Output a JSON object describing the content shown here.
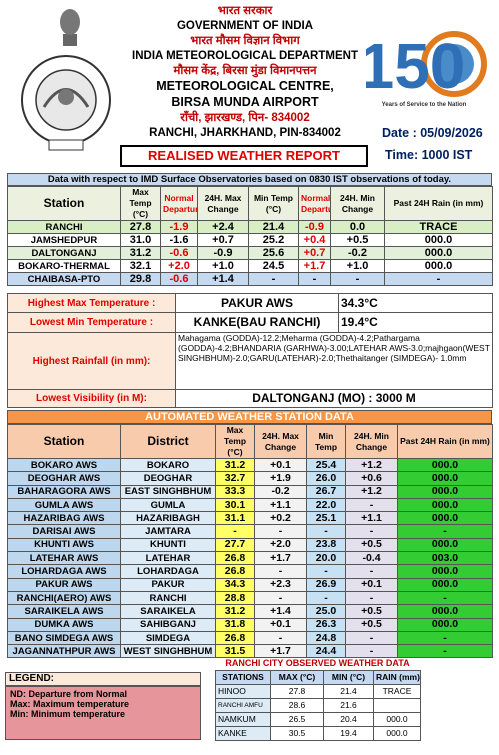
{
  "header": {
    "hindi_govt": "भारत सरकार",
    "govt": "GOVERNMENT OF INDIA",
    "hindi_dept": "भारत मौसम विज्ञान विभाग",
    "dept": "INDIA METEOROLOGICAL DEPARTMENT",
    "hindi_centre": "मौसम केंद्र, बिरसा मुंडा विमानपत्तन",
    "centre": "METEOROLOGICAL CENTRE,",
    "airport": "BIRSA MUNDA AIRPORT",
    "hindi_address": "रॉंची, झारखण्ड, पिन- 834002",
    "address": "RANCHI, JHARKHAND, PIN-834002",
    "date": "Date : 05/09/2026",
    "time": "Time: 1000 IST",
    "title": "REALISED WEATHER REPORT",
    "logo_number": "150",
    "logo_caption": "Years of Service to the Nation"
  },
  "observatory_table": {
    "note": "Data with respect to IMD Surface Observatories based on 0830 IST observations of today.",
    "headers": [
      "Station",
      "Max Temp (°C)",
      "Normal Departure",
      "24H. Max Change",
      "Min Temp (°C)",
      "Normal Departure",
      "24H. Min Change",
      "Past 24H Rain (in mm)"
    ],
    "rows": [
      [
        "RANCHI",
        "27.8",
        "-1.9",
        "+2.4",
        "21.4",
        "-0.9",
        "0.0",
        "TRACE"
      ],
      [
        "JAMSHEDPUR",
        "31.0",
        "-1.6",
        "+0.7",
        "25.2",
        "+0.4",
        "+0.5",
        "000.0"
      ],
      [
        "DALTONGANJ",
        "31.2",
        "-0.6",
        "-0.9",
        "25.6",
        "+0.7",
        "-0.2",
        "000.0"
      ],
      [
        "BOKARO-THERMAL",
        "32.1",
        "+2.0",
        "+1.0",
        "24.5",
        "+1.7",
        "+1.0",
        "000.0"
      ],
      [
        "CHAIBASA-PTO",
        "29.8",
        "-0.6",
        "+1.4",
        "-",
        "-",
        "-",
        "-"
      ]
    ]
  },
  "extremes": [
    {
      "label": "Highest Max Temperature :",
      "place": "PAKUR AWS",
      "value": "34.3°C"
    },
    {
      "label": "Lowest Min Temperature :",
      "place": "KANKE(BAU RANCHI)",
      "value": "19.4°C"
    },
    {
      "label": "Highest Rainfall (in mm):",
      "place": "Mahagama (GODDA)-12.2;Meharma (GODDA)-4.2;Pathargama (GODDA)-4.2;BHANDARIA (GARHWA)-3.00;LATEHAR AWS-3.0;majhgaon(WEST SINGHBHUM)-2.0;GARU(LATEHAR)-2.0;Thethaitanger (SIMDEGA)- 1.0mm"
    },
    {
      "label": "Lowest Visibility (in M):",
      "place": "DALTONGANJ (MO) : 3000 M"
    }
  ],
  "aws_table": {
    "title": "AUTOMATED WEATHER STATION DATA",
    "headers": [
      "Station",
      "District",
      "Max Temp (°C)",
      "24H. Max Change",
      "Min Temp",
      "24H. Min Change",
      "Past 24H Rain (in mm)"
    ],
    "rows": [
      [
        "BOKARO AWS",
        "BOKARO",
        "31.2",
        "+0.1",
        "25.4",
        "+1.2",
        "000.0"
      ],
      [
        "DEOGHAR AWS",
        "DEOGHAR",
        "32.7",
        "+1.9",
        "26.0",
        "+0.6",
        "000.0"
      ],
      [
        "BAHARAGORA AWS",
        "EAST SINGHBHUM",
        "33.3",
        "-0.2",
        "26.7",
        "+1.2",
        "000.0"
      ],
      [
        "GUMLA AWS",
        "GUMLA",
        "30.1",
        "+1.1",
        "22.0",
        "-",
        "000.0"
      ],
      [
        "HAZARIBAG AWS",
        "HAZARIBAGH",
        "31.1",
        "+0.2",
        "25.1",
        "+1.1",
        "000.0"
      ],
      [
        "DARISAI AWS",
        "JAMTARA",
        "-",
        "-",
        "-",
        "-",
        "-"
      ],
      [
        "KHUNTI AWS",
        "KHUNTI",
        "27.7",
        "+2.0",
        "23.8",
        "+0.5",
        "000.0"
      ],
      [
        "LATEHAR AWS",
        "LATEHAR",
        "26.8",
        "+1.7",
        "20.0",
        "-0.4",
        "003.0"
      ],
      [
        "LOHARDAGA AWS",
        "LOHARDAGA",
        "26.8",
        "-",
        "-",
        "-",
        "000.0"
      ],
      [
        "PAKUR AWS",
        "PAKUR",
        "34.3",
        "+2.3",
        "26.9",
        "+0.1",
        "000.0"
      ],
      [
        "RANCHI(AERO) AWS",
        "RANCHI",
        "28.8",
        "-",
        "-",
        "-",
        "-"
      ],
      [
        "SARAIKELA AWS",
        "SARAIKELA",
        "31.2",
        "+1.4",
        "25.0",
        "+0.5",
        "000.0"
      ],
      [
        "DUMKA AWS",
        "SAHIBGANJ",
        "31.8",
        "+0.1",
        "26.3",
        "+0.5",
        "000.0"
      ],
      [
        "BANO SIMDEGA AWS",
        "SIMDEGA",
        "26.8",
        "-",
        "24.8",
        "-",
        "-"
      ],
      [
        "JAGANNATHPUR AWS",
        "WEST SINGHBHUM",
        "31.5",
        "+1.7",
        "24.4",
        "-",
        "-"
      ]
    ]
  },
  "legend": {
    "title": "LEGEND:",
    "items": [
      "ND: Departure from Normal",
      "Max: Maximum temperature",
      "Min: Minimum temperature"
    ]
  },
  "city_table": {
    "title": "RANCHI CITY OBSERVED WEATHER DATA",
    "headers": [
      "STATIONS",
      "MAX (°C)",
      "MIN (°C)",
      "RAIN (mm)"
    ],
    "rows": [
      [
        "HINOO",
        "27.8",
        "21.4",
        "TRACE"
      ],
      [
        "RANCHI AMFU",
        "28.6",
        "21.6"
      ],
      [
        "NAMKUM",
        "26.5",
        "20.4",
        "000.0"
      ],
      [
        "KANKE",
        "30.5",
        "19.4",
        "000.0"
      ]
    ]
  }
}
